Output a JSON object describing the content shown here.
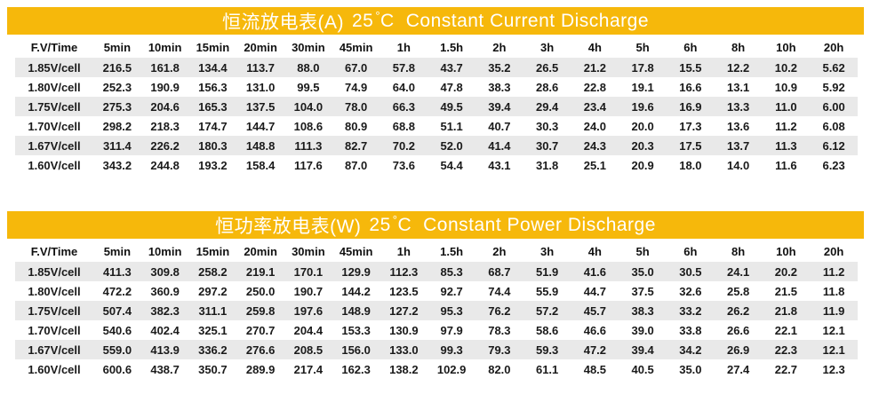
{
  "colors": {
    "band_bg": "#f6b80b",
    "stripe": "#e9e9e9",
    "title_text": "#ffffff",
    "body_text": "#1a1a1a"
  },
  "tables": [
    {
      "title": {
        "zh": "恒流放电表(A)",
        "temp": "25",
        "degree": "°",
        "unit": "C",
        "en": "Constant Current Discharge"
      },
      "columns": [
        "F.V/Time",
        "5min",
        "10min",
        "15min",
        "20min",
        "30min",
        "45min",
        "1h",
        "1.5h",
        "2h",
        "3h",
        "4h",
        "5h",
        "6h",
        "8h",
        "10h",
        "20h"
      ],
      "rows": [
        {
          "label": "1.85V/cell",
          "values": [
            "216.5",
            "161.8",
            "134.4",
            "113.7",
            "88.0",
            "67.0",
            "57.8",
            "43.7",
            "35.2",
            "26.5",
            "21.2",
            "17.8",
            "15.5",
            "12.2",
            "10.2",
            "5.62"
          ]
        },
        {
          "label": "1.80V/cell",
          "values": [
            "252.3",
            "190.9",
            "156.3",
            "131.0",
            "99.5",
            "74.9",
            "64.0",
            "47.8",
            "38.3",
            "28.6",
            "22.8",
            "19.1",
            "16.6",
            "13.1",
            "10.9",
            "5.92"
          ]
        },
        {
          "label": "1.75V/cell",
          "values": [
            "275.3",
            "204.6",
            "165.3",
            "137.5",
            "104.0",
            "78.0",
            "66.3",
            "49.5",
            "39.4",
            "29.4",
            "23.4",
            "19.6",
            "16.9",
            "13.3",
            "11.0",
            "6.00"
          ]
        },
        {
          "label": "1.70V/cell",
          "values": [
            "298.2",
            "218.3",
            "174.7",
            "144.7",
            "108.6",
            "80.9",
            "68.8",
            "51.1",
            "40.7",
            "30.3",
            "24.0",
            "20.0",
            "17.3",
            "13.6",
            "11.2",
            "6.08"
          ]
        },
        {
          "label": "1.67V/cell",
          "values": [
            "311.4",
            "226.2",
            "180.3",
            "148.8",
            "111.3",
            "82.7",
            "70.2",
            "52.0",
            "41.4",
            "30.7",
            "24.3",
            "20.3",
            "17.5",
            "13.7",
            "11.3",
            "6.12"
          ]
        },
        {
          "label": "1.60V/cell",
          "values": [
            "343.2",
            "244.8",
            "193.2",
            "158.4",
            "117.6",
            "87.0",
            "73.6",
            "54.4",
            "43.1",
            "31.8",
            "25.1",
            "20.9",
            "18.0",
            "14.0",
            "11.6",
            "6.23"
          ]
        }
      ]
    },
    {
      "title": {
        "zh": "恒功率放电表(W)",
        "temp": "25",
        "degree": "°",
        "unit": "C",
        "en": "Constant Power Discharge"
      },
      "columns": [
        "F.V/Time",
        "5min",
        "10min",
        "15min",
        "20min",
        "30min",
        "45min",
        "1h",
        "1.5h",
        "2h",
        "3h",
        "4h",
        "5h",
        "6h",
        "8h",
        "10h",
        "20h"
      ],
      "rows": [
        {
          "label": "1.85V/cell",
          "values": [
            "411.3",
            "309.8",
            "258.2",
            "219.1",
            "170.1",
            "129.9",
            "112.3",
            "85.3",
            "68.7",
            "51.9",
            "41.6",
            "35.0",
            "30.5",
            "24.1",
            "20.2",
            "11.2"
          ]
        },
        {
          "label": "1.80V/cell",
          "values": [
            "472.2",
            "360.9",
            "297.2",
            "250.0",
            "190.7",
            "144.2",
            "123.5",
            "92.7",
            "74.4",
            "55.9",
            "44.7",
            "37.5",
            "32.6",
            "25.8",
            "21.5",
            "11.8"
          ]
        },
        {
          "label": "1.75V/cell",
          "values": [
            "507.4",
            "382.3",
            "311.1",
            "259.8",
            "197.6",
            "148.9",
            "127.2",
            "95.3",
            "76.2",
            "57.2",
            "45.7",
            "38.3",
            "33.2",
            "26.2",
            "21.8",
            "11.9"
          ]
        },
        {
          "label": "1.70V/cell",
          "values": [
            "540.6",
            "402.4",
            "325.1",
            "270.7",
            "204.4",
            "153.3",
            "130.9",
            "97.9",
            "78.3",
            "58.6",
            "46.6",
            "39.0",
            "33.8",
            "26.6",
            "22.1",
            "12.1"
          ]
        },
        {
          "label": "1.67V/cell",
          "values": [
            "559.0",
            "413.9",
            "336.2",
            "276.6",
            "208.5",
            "156.0",
            "133.0",
            "99.3",
            "79.3",
            "59.3",
            "47.2",
            "39.4",
            "34.2",
            "26.9",
            "22.3",
            "12.1"
          ]
        },
        {
          "label": "1.60V/cell",
          "values": [
            "600.6",
            "438.7",
            "350.7",
            "289.9",
            "217.4",
            "162.3",
            "138.2",
            "102.9",
            "82.0",
            "61.1",
            "48.5",
            "40.5",
            "35.0",
            "27.4",
            "22.7",
            "12.3"
          ]
        }
      ]
    }
  ]
}
